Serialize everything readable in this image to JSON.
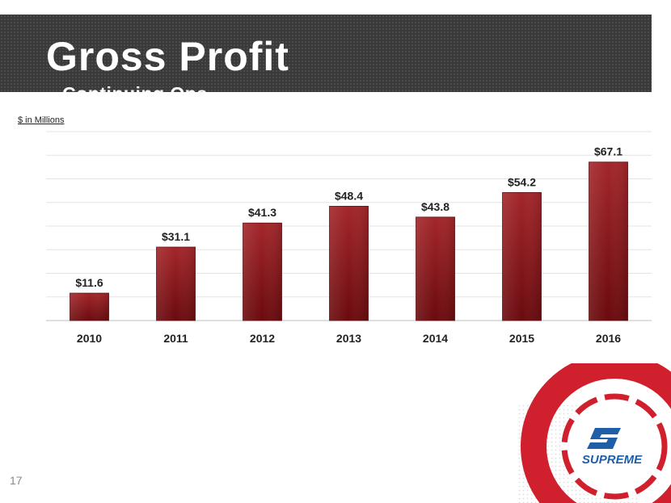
{
  "slide": {
    "title": "Gross Profit",
    "subtitle": "– Continuing Ops",
    "unit_label": "$ in Millions",
    "page_number": "17",
    "accent_color": "#d0202e",
    "bar_color": "#8b1a1c"
  },
  "logo": {
    "wordmark": "SUPREME"
  },
  "chart_data": {
    "type": "bar",
    "title": "Gross Profit – Continuing Ops",
    "ylabel": "$ in Millions",
    "xlabel": "",
    "categories": [
      "2010",
      "2011",
      "2012",
      "2013",
      "2014",
      "2015",
      "2016"
    ],
    "values": [
      11.6,
      31.1,
      41.3,
      48.4,
      43.8,
      54.2,
      67.1
    ],
    "value_labels": [
      "$11.6",
      "$31.1",
      "$41.3",
      "$48.4",
      "$43.8",
      "$54.2",
      "$67.1"
    ],
    "ylim": [
      0,
      80
    ],
    "grid": true
  }
}
